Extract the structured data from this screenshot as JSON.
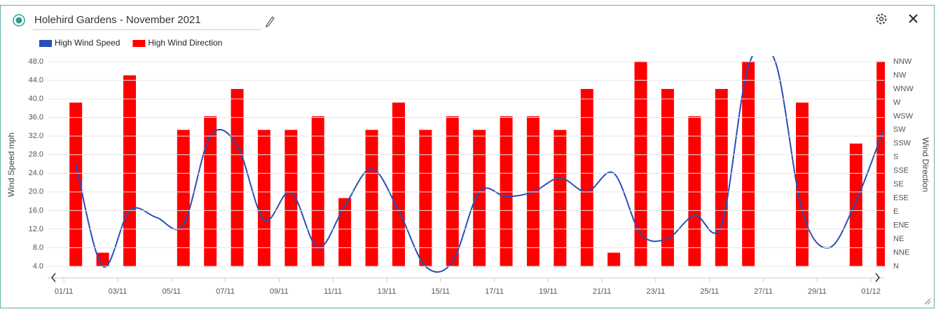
{
  "header": {
    "title": "Holehird Gardens - November 2021"
  },
  "chart_data": {
    "type": "bar-line",
    "y_label": "Wind Speed mph",
    "y2_label": "Wind Direction",
    "categories": [
      "01/11",
      null,
      "03/11",
      null,
      "05/11",
      null,
      "07/11",
      null,
      "09/11",
      null,
      "11/11",
      null,
      "13/11",
      null,
      "15/11",
      null,
      "17/11",
      null,
      "19/11",
      null,
      "21/11",
      null,
      "23/11",
      null,
      "25/11",
      null,
      "27/11",
      null,
      "29/11",
      null,
      "01/12"
    ],
    "series": [
      {
        "name": "High Wind Speed",
        "type": "line",
        "color": "#2a4fb5",
        "values": [
          26,
          4,
          16,
          14.5,
          13,
          32,
          30,
          14,
          20,
          8,
          17,
          25,
          16,
          4,
          5,
          20,
          19,
          20,
          23,
          20,
          24,
          11,
          10,
          15,
          13,
          47,
          48,
          16,
          8,
          18,
          33
        ]
      },
      {
        "name": "High Wind Direction",
        "type": "bar",
        "axis": "y2",
        "color": "#ff0000",
        "values": [
          12,
          1,
          14,
          null,
          10,
          11,
          13,
          10,
          10,
          11,
          5,
          10,
          12,
          10,
          11,
          10,
          11,
          11,
          10,
          13,
          1,
          15,
          13,
          11,
          13,
          15,
          null,
          12,
          null,
          9,
          15
        ]
      }
    ],
    "ylim": [
      4,
      48
    ],
    "yticks": [
      {
        "value": 4,
        "label": "4.0"
      },
      {
        "value": 8,
        "label": "8.0"
      },
      {
        "value": 12,
        "label": "12.0"
      },
      {
        "value": 16,
        "label": "16.0"
      },
      {
        "value": 20,
        "label": "20.0"
      },
      {
        "value": 24,
        "label": "24.0"
      },
      {
        "value": 28,
        "label": "28.0"
      },
      {
        "value": 32,
        "label": "32.0"
      },
      {
        "value": 36,
        "label": "36.0"
      },
      {
        "value": 40,
        "label": "40.0"
      },
      {
        "value": 44,
        "label": "44.0"
      },
      {
        "value": 48,
        "label": "48.0"
      }
    ],
    "y2lim": [
      0,
      15
    ],
    "y2ticks": [
      {
        "value": 0,
        "label": "N"
      },
      {
        "value": 1,
        "label": "NNE"
      },
      {
        "value": 2,
        "label": "NE"
      },
      {
        "value": 3,
        "label": "ENE"
      },
      {
        "value": 4,
        "label": "E"
      },
      {
        "value": 5,
        "label": "ESE"
      },
      {
        "value": 6,
        "label": "SE"
      },
      {
        "value": 7,
        "label": "SSE"
      },
      {
        "value": 8,
        "label": "S"
      },
      {
        "value": 9,
        "label": "SSW"
      },
      {
        "value": 10,
        "label": "SW"
      },
      {
        "value": 11,
        "label": "WSW"
      },
      {
        "value": 12,
        "label": "W"
      },
      {
        "value": 13,
        "label": "WNW"
      },
      {
        "value": 14,
        "label": "NW"
      },
      {
        "value": 15,
        "label": "NNW"
      }
    ],
    "grid": true
  }
}
